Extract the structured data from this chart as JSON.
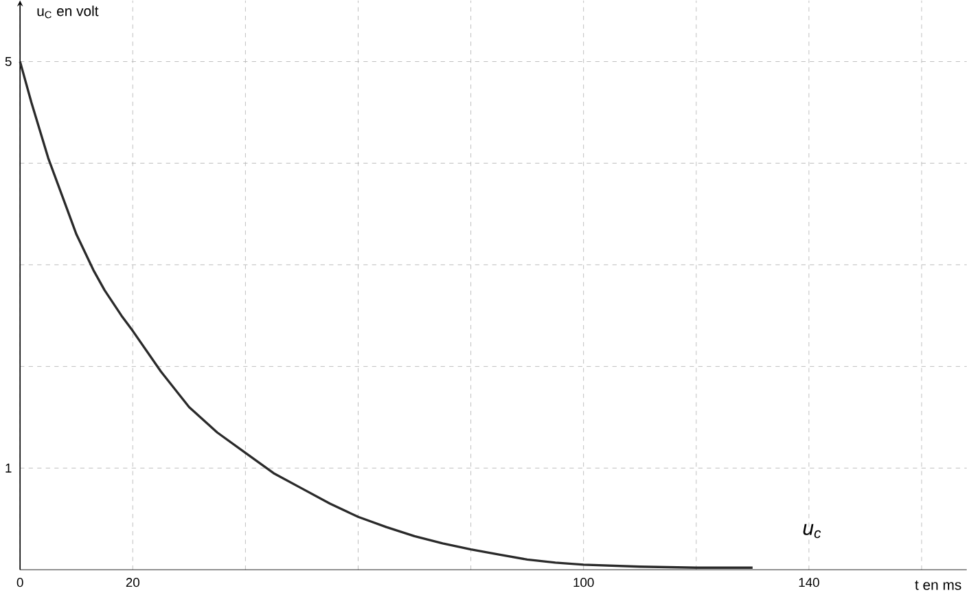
{
  "chart_data": {
    "type": "line",
    "xlabel": "t en ms",
    "ylabel": "u$_{C}$ en volt",
    "x": [
      0,
      2,
      5,
      8,
      10,
      13,
      15,
      18,
      20,
      25,
      30,
      35,
      40,
      45,
      50,
      55,
      60,
      65,
      70,
      75,
      80,
      85,
      90,
      95,
      100,
      110,
      120,
      130
    ],
    "series": [
      {
        "name": "*u*$_{c}$",
        "color": "#2a2a2a",
        "values": [
          5,
          4.6,
          4.05,
          3.6,
          3.3,
          2.95,
          2.75,
          2.5,
          2.35,
          1.95,
          1.6,
          1.35,
          1.15,
          0.95,
          0.8,
          0.65,
          0.52,
          0.42,
          0.33,
          0.26,
          0.2,
          0.15,
          0.1,
          0.07,
          0.05,
          0.03,
          0.02,
          0.02
        ]
      }
    ],
    "xlim": [
      0,
      168
    ],
    "ylim": [
      0,
      5.6
    ],
    "xticks": [
      0,
      20,
      {
        "value": 40,
        "label": null
      },
      {
        "value": 60,
        "label": null
      },
      {
        "value": 80,
        "label": null
      },
      100,
      {
        "value": 120,
        "label": null
      },
      140,
      {
        "value": 160,
        "label": null
      }
    ],
    "yticks": [
      1,
      {
        "value": 2,
        "label": null
      },
      {
        "value": 3,
        "label": null
      },
      {
        "value": 4,
        "label": null
      },
      5
    ],
    "grid": true,
    "marker": "none",
    "line_style": "solid"
  }
}
